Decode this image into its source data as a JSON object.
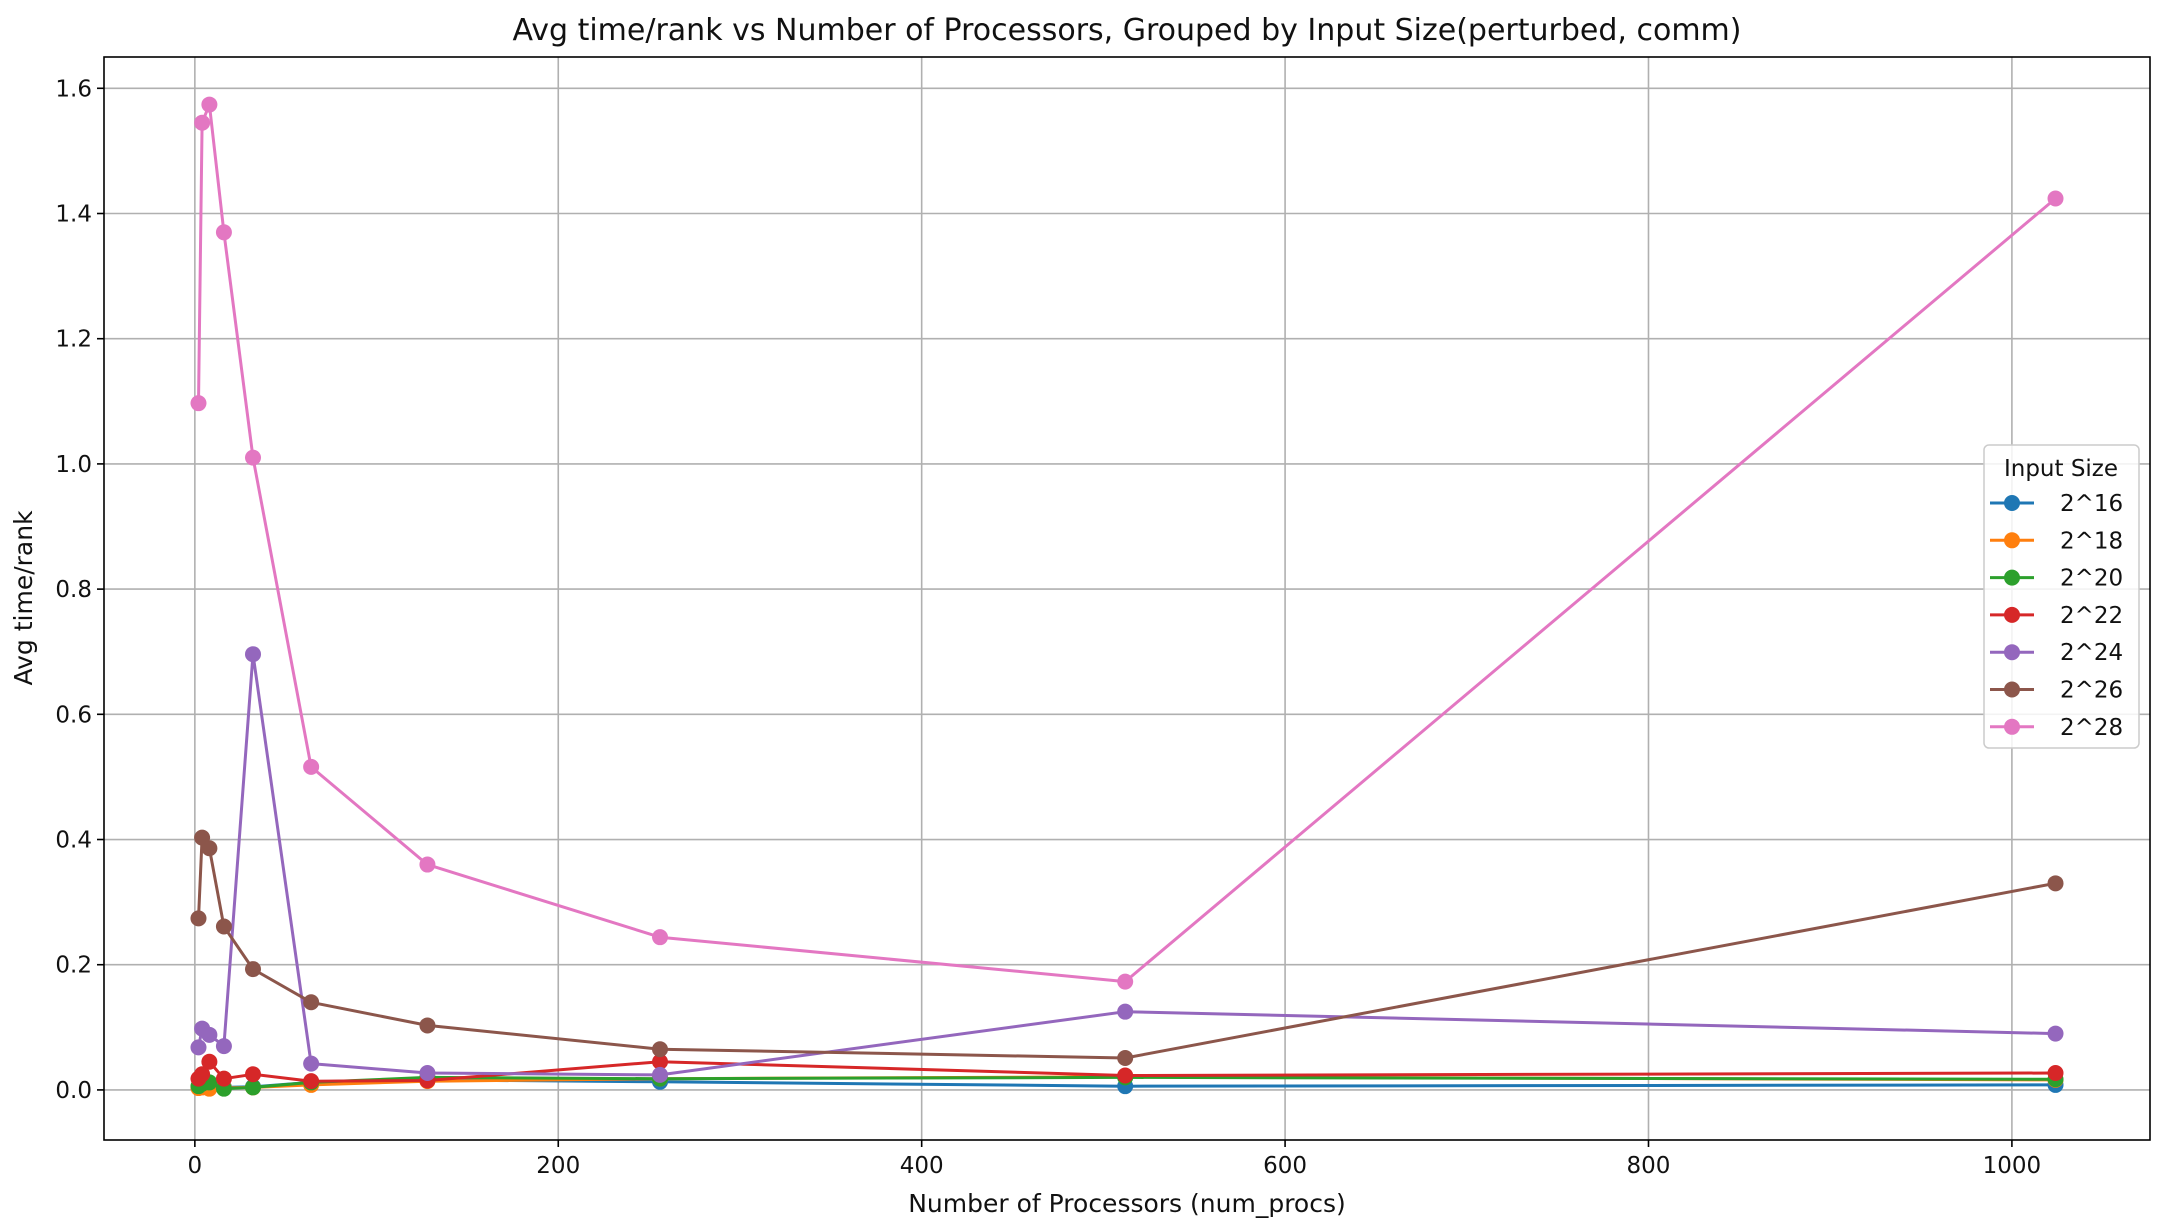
{
  "chart_data": {
    "type": "line",
    "title": "Avg time/rank vs Number of Processors, Grouped by Input Size(perturbed, comm)",
    "xlabel": "Number of Processors (num_procs)",
    "ylabel": "Avg time/rank",
    "xlim": [
      -50,
      1076
    ],
    "ylim": [
      -0.08,
      1.65
    ],
    "xticks": [
      0,
      200,
      400,
      600,
      800,
      1000
    ],
    "xtick_labels": [
      "0",
      "200",
      "400",
      "600",
      "800",
      "1000"
    ],
    "yticks": [
      0.0,
      0.2,
      0.4,
      0.6,
      0.8,
      1.0,
      1.2,
      1.4,
      1.6
    ],
    "ytick_labels": [
      "0.0",
      "0.2",
      "0.4",
      "0.6",
      "0.8",
      "1.0",
      "1.2",
      "1.4",
      "1.6"
    ],
    "grid": true,
    "legend_title": "Input Size",
    "legend_position": "center-right",
    "x": [
      2,
      4,
      8,
      16,
      32,
      64,
      128,
      256,
      512,
      1024
    ],
    "series": [
      {
        "name": "2^16",
        "color": "#1f77b4",
        "values": [
          0.004,
          0.006,
          0.008,
          0.004,
          0.005,
          0.012,
          0.016,
          0.013,
          0.006,
          0.008
        ]
      },
      {
        "name": "2^18",
        "color": "#ff7f0e",
        "values": [
          0.003,
          0.004,
          0.002,
          0.003,
          0.004,
          0.008,
          0.014,
          0.018,
          0.021,
          0.016
        ]
      },
      {
        "name": "2^20",
        "color": "#2ca02c",
        "values": [
          0.006,
          0.01,
          0.012,
          0.002,
          0.004,
          0.012,
          0.02,
          0.018,
          0.02,
          0.017
        ]
      },
      {
        "name": "2^22",
        "color": "#d62728",
        "values": [
          0.018,
          0.025,
          0.045,
          0.018,
          0.025,
          0.014,
          0.015,
          0.045,
          0.023,
          0.027
        ]
      },
      {
        "name": "2^24",
        "color": "#9467bd",
        "values": [
          0.068,
          0.098,
          0.088,
          0.07,
          0.696,
          0.042,
          0.027,
          0.024,
          0.125,
          0.09
        ]
      },
      {
        "name": "2^26",
        "color": "#8c564b",
        "values": [
          0.274,
          0.403,
          0.386,
          0.261,
          0.193,
          0.14,
          0.103,
          0.065,
          0.051,
          0.33
        ]
      },
      {
        "name": "2^28",
        "color": "#e377c2",
        "values": [
          1.097,
          1.545,
          1.574,
          1.37,
          1.01,
          0.516,
          0.36,
          0.244,
          0.173,
          1.424
        ]
      }
    ]
  }
}
